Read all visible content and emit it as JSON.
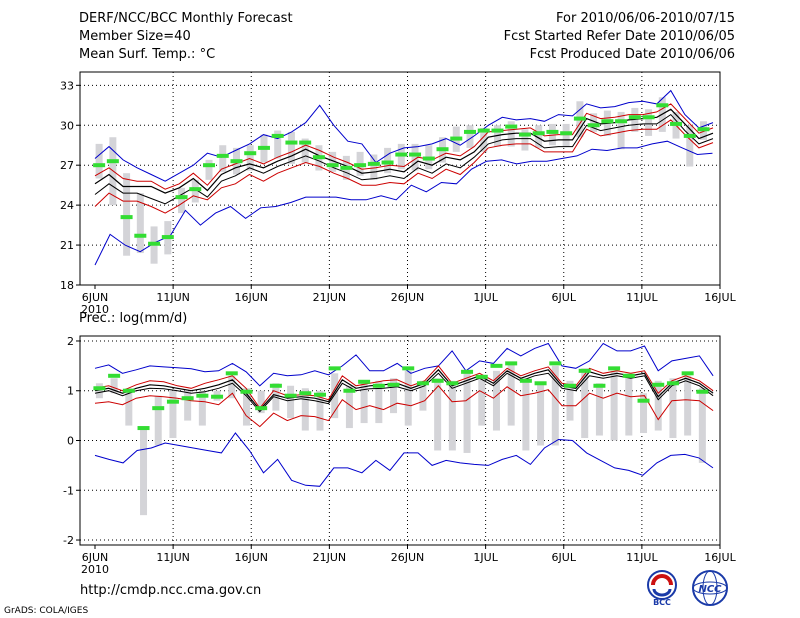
{
  "header": {
    "title": "DERF/NCC/BCC Monthly Forecast",
    "member_size": "Member Size=40",
    "variable": "Mean Surf. Temp.: °C",
    "forecast_period": "For 2010/06/06-2010/07/15",
    "started_refer": "Fcst Started Refer Date 2010/06/05",
    "produced": "Fcst Produced Date 2010/06/06"
  },
  "colors": {
    "envelope": "#0000cc",
    "percentile": "#cc0000",
    "mean": "#000000",
    "observed_bar": "#33dd33",
    "spread_box": "#d4d4d8"
  },
  "x_axis": {
    "days": 40,
    "tick_labels": [
      "6JUN",
      "11JUN",
      "16JUN",
      "21JUN",
      "26JUN",
      "1JUL",
      "6JUL",
      "11JUL",
      "16JUL"
    ],
    "year_label": "2010"
  },
  "chart_data": [
    {
      "type": "line",
      "title": "Mean Surf. Temp.: °C",
      "ylim": [
        18,
        34
      ],
      "yticks": [
        18,
        21,
        24,
        27,
        30,
        33
      ],
      "series": [
        {
          "name": "max",
          "values": [
            27.5,
            28.4,
            27.4,
            26.8,
            26.3,
            25.8,
            26.4,
            27.0,
            27.9,
            27.6,
            28.1,
            28.6,
            29.3,
            29.0,
            29.5,
            30.2,
            31.5,
            30.0,
            28.8,
            28.6,
            27.2,
            27.9,
            28.3,
            28.4,
            28.6,
            29.0,
            28.5,
            29.2,
            30.0,
            30.6,
            30.4,
            30.5,
            30.3,
            30.8,
            30.7,
            31.6,
            31.3,
            31.4,
            31.7,
            31.8,
            31.6,
            32.6,
            30.8,
            29.8,
            30.2
          ]
        },
        {
          "name": "p75",
          "values": [
            26.2,
            26.8,
            26.0,
            25.8,
            25.8,
            25.2,
            25.6,
            26.4,
            25.5,
            26.7,
            27.1,
            27.5,
            27.1,
            27.6,
            28.0,
            28.5,
            28.1,
            27.6,
            27.2,
            26.7,
            26.8,
            27.0,
            26.9,
            27.6,
            27.4,
            27.9,
            27.7,
            28.4,
            29.5,
            29.6,
            29.7,
            29.8,
            29.2,
            29.3,
            29.3,
            30.9,
            30.5,
            30.6,
            30.8,
            30.8,
            31.0,
            31.6,
            30.5,
            29.4,
            29.8
          ]
        },
        {
          "name": "mean",
          "values": [
            25.6,
            26.3,
            25.4,
            25.4,
            25.4,
            24.9,
            25.3,
            26.0,
            25.1,
            26.3,
            26.8,
            27.1,
            26.8,
            27.3,
            27.7,
            28.2,
            27.7,
            27.3,
            26.9,
            26.4,
            26.5,
            26.7,
            26.5,
            27.3,
            27.0,
            27.6,
            27.4,
            28.0,
            29.1,
            29.3,
            29.4,
            29.4,
            28.8,
            28.9,
            28.9,
            30.5,
            30.1,
            30.2,
            30.4,
            30.5,
            30.6,
            31.2,
            30.1,
            29.0,
            29.4
          ]
        },
        {
          "name": "p25",
          "values": [
            24.8,
            25.6,
            24.9,
            24.9,
            24.5,
            24.1,
            24.7,
            25.3,
            24.6,
            25.8,
            26.2,
            26.8,
            26.4,
            26.9,
            27.3,
            27.7,
            27.3,
            26.8,
            26.4,
            25.9,
            26.0,
            26.2,
            26.0,
            26.8,
            26.4,
            27.1,
            26.8,
            27.6,
            28.6,
            28.9,
            29.0,
            29.0,
            28.3,
            28.4,
            28.4,
            30.0,
            29.6,
            29.8,
            30.0,
            30.1,
            30.1,
            30.8,
            29.6,
            28.6,
            29.0
          ]
        },
        {
          "name": "p10",
          "values": [
            23.9,
            24.9,
            24.3,
            24.3,
            23.9,
            23.4,
            24.0,
            24.7,
            24.4,
            25.3,
            25.6,
            26.3,
            25.8,
            26.4,
            26.8,
            27.2,
            26.9,
            26.4,
            26.0,
            25.5,
            25.5,
            25.7,
            25.6,
            26.4,
            26.0,
            26.7,
            26.3,
            27.2,
            28.3,
            28.5,
            28.6,
            28.6,
            28.0,
            28.0,
            28.0,
            29.7,
            29.2,
            29.4,
            29.6,
            29.7,
            29.7,
            30.4,
            29.3,
            28.3,
            28.7
          ]
        },
        {
          "name": "min",
          "values": [
            19.5,
            21.8,
            21.0,
            20.5,
            21.2,
            21.7,
            23.6,
            22.5,
            23.4,
            23.9,
            23.0,
            23.8,
            23.9,
            24.2,
            24.6,
            24.6,
            24.6,
            24.4,
            24.4,
            24.7,
            24.4,
            25.5,
            25.0,
            25.7,
            25.6,
            26.7,
            27.3,
            27.4,
            27.1,
            27.3,
            27.3,
            27.5,
            27.7,
            28.2,
            28.1,
            28.3,
            28.3,
            28.6,
            28.8,
            28.3,
            27.8,
            27.9
          ]
        },
        {
          "name": "observed_marks",
          "values": [
            27.0,
            27.3,
            23.1,
            21.7,
            21.1,
            21.6,
            24.6,
            25.2,
            27.0,
            27.7,
            27.3,
            27.9,
            28.3,
            29.2,
            28.7,
            28.7,
            27.6,
            27.0,
            26.8,
            27.0,
            27.1,
            27.2,
            27.8,
            27.8,
            27.5,
            28.2,
            29.0,
            29.5,
            29.6,
            29.6,
            29.9,
            29.3,
            29.4,
            29.5,
            29.4,
            30.5,
            30.0,
            30.3,
            30.3,
            30.6,
            30.6,
            31.5,
            30.1,
            29.2,
            29.7
          ]
        },
        {
          "name": "box_low",
          "values": [
            26.0,
            24.0,
            20.2,
            20.4,
            19.6,
            20.3,
            23.4,
            24.2,
            25.9,
            26.5,
            26.3,
            26.6,
            27.2,
            27.5,
            27.1,
            27.2,
            26.6,
            26.5,
            25.9,
            26.2,
            25.9,
            26.4,
            26.7,
            26.6,
            26.7,
            27.2,
            28.0,
            28.3,
            28.0,
            28.4,
            28.4,
            28.1,
            28.3,
            28.5,
            28.4,
            29.1,
            29.5,
            29.2,
            28.2,
            29.5,
            29.2,
            29.5,
            29.0,
            26.9,
            28.9
          ]
        },
        {
          "name": "box_high",
          "values": [
            28.6,
            29.1,
            26.4,
            24.9,
            22.4,
            22.8,
            25.3,
            25.9,
            27.4,
            28.5,
            28.3,
            28.5,
            29.3,
            29.6,
            29.5,
            29.0,
            28.5,
            28.0,
            27.7,
            28.0,
            27.8,
            28.3,
            28.6,
            28.6,
            28.5,
            29.1,
            29.9,
            30.0,
            29.8,
            30.0,
            30.3,
            29.7,
            30.0,
            30.1,
            30.1,
            31.8,
            30.9,
            31.1,
            31.0,
            31.3,
            31.2,
            32.1,
            31.0,
            30.0,
            30.3
          ]
        }
      ]
    },
    {
      "type": "line",
      "title": "Prec.: log(mm/d)",
      "ylim": [
        -2.1,
        2.1
      ],
      "yticks": [
        -2,
        -1,
        0,
        1,
        2
      ],
      "series": [
        {
          "name": "max",
          "values": [
            1.45,
            1.52,
            1.35,
            1.42,
            1.5,
            1.48,
            1.46,
            1.44,
            1.38,
            1.4,
            1.55,
            1.38,
            1.1,
            1.35,
            1.3,
            1.32,
            1.4,
            1.32,
            1.5,
            1.72,
            1.4,
            1.4,
            1.55,
            1.35,
            1.45,
            1.5,
            1.8,
            1.4,
            1.6,
            1.55,
            1.85,
            1.7,
            1.85,
            1.95,
            1.5,
            1.45,
            1.6,
            1.95,
            1.8,
            1.8,
            1.9,
            1.4,
            1.6,
            1.65,
            1.7,
            1.3
          ]
        },
        {
          "name": "p75",
          "values": [
            1.05,
            1.1,
            1.0,
            1.12,
            1.2,
            1.18,
            1.1,
            1.05,
            1.15,
            1.22,
            1.3,
            1.05,
            0.65,
            1.0,
            0.9,
            0.92,
            0.9,
            0.82,
            1.3,
            1.1,
            1.15,
            1.2,
            1.22,
            1.1,
            1.2,
            1.5,
            1.15,
            1.25,
            1.35,
            1.2,
            1.45,
            1.3,
            1.4,
            1.48,
            1.15,
            1.1,
            1.45,
            1.35,
            1.4,
            1.35,
            1.4,
            0.95,
            1.2,
            1.3,
            1.2,
            1.0
          ]
        },
        {
          "name": "mean",
          "values": [
            1.0,
            1.05,
            0.95,
            1.05,
            1.12,
            1.1,
            1.05,
            1.0,
            1.05,
            1.12,
            1.22,
            0.95,
            0.62,
            0.92,
            0.85,
            0.88,
            0.85,
            0.78,
            1.22,
            1.05,
            1.1,
            1.12,
            1.15,
            1.05,
            1.15,
            1.42,
            1.1,
            1.2,
            1.3,
            1.15,
            1.4,
            1.25,
            1.35,
            1.42,
            1.1,
            1.05,
            1.38,
            1.3,
            1.35,
            1.3,
            1.35,
            0.88,
            1.15,
            1.25,
            1.15,
            0.95
          ]
        },
        {
          "name": "p25",
          "values": [
            0.95,
            1.0,
            0.9,
            1.0,
            1.05,
            1.04,
            1.0,
            0.95,
            0.98,
            1.05,
            1.15,
            0.9,
            0.58,
            0.88,
            0.8,
            0.84,
            0.8,
            0.74,
            1.15,
            1.0,
            1.04,
            1.05,
            1.08,
            1.0,
            1.1,
            1.35,
            1.05,
            1.15,
            1.25,
            1.1,
            1.35,
            1.2,
            1.3,
            1.35,
            1.05,
            1.0,
            1.3,
            1.25,
            1.3,
            1.25,
            1.3,
            0.82,
            1.1,
            1.2,
            1.1,
            0.9
          ]
        },
        {
          "name": "p10",
          "values": [
            0.75,
            0.78,
            0.72,
            0.85,
            0.9,
            0.88,
            0.85,
            0.8,
            0.78,
            0.72,
            0.95,
            0.5,
            0.28,
            0.55,
            0.4,
            0.5,
            0.48,
            0.4,
            0.82,
            0.62,
            0.7,
            0.62,
            0.75,
            0.7,
            0.8,
            1.1,
            0.78,
            0.8,
            1.0,
            0.85,
            1.08,
            0.9,
            0.95,
            1.02,
            0.7,
            0.7,
            0.95,
            0.85,
            0.95,
            0.88,
            0.9,
            0.42,
            0.8,
            0.82,
            0.8,
            0.6
          ]
        },
        {
          "name": "min",
          "values": [
            -0.3,
            -0.38,
            -0.45,
            -0.2,
            -0.15,
            -0.05,
            -0.1,
            -0.15,
            -0.2,
            -0.25,
            0.15,
            -0.2,
            -0.65,
            -0.38,
            -0.8,
            -0.9,
            -0.92,
            -0.55,
            -0.55,
            -0.65,
            -0.4,
            -0.6,
            -0.25,
            -0.25,
            -0.5,
            -0.4,
            -0.45,
            -0.48,
            -0.5,
            -0.38,
            -0.3,
            -0.48,
            -0.15,
            0.02,
            0.0,
            -0.25,
            -0.4,
            -0.55,
            -0.6,
            -0.7,
            -0.45,
            -0.3,
            -0.28,
            -0.35,
            -0.55
          ]
        },
        {
          "name": "observed_marks",
          "values": [
            1.05,
            1.3,
            1.0,
            0.25,
            0.65,
            0.78,
            0.85,
            0.9,
            0.88,
            1.35,
            0.98,
            0.65,
            1.1,
            0.9,
            0.95,
            0.92,
            1.45,
            1.0,
            1.18,
            1.1,
            1.12,
            1.45,
            1.15,
            1.2,
            1.15,
            1.38,
            1.28,
            1.5,
            1.55,
            1.2,
            1.15,
            1.55,
            1.1,
            1.4,
            1.1,
            1.45,
            1.3,
            0.8,
            1.12,
            1.15,
            1.35,
            0.98
          ]
        },
        {
          "name": "box_low",
          "values": [
            0.85,
            0.95,
            0.3,
            -1.5,
            -0.1,
            0.05,
            0.4,
            0.3,
            0.8,
            0.85,
            0.3,
            0.55,
            0.6,
            0.45,
            0.2,
            0.2,
            0.45,
            0.25,
            0.35,
            0.35,
            0.55,
            0.3,
            0.6,
            -0.2,
            -0.2,
            -0.25,
            0.3,
            0.2,
            0.3,
            -0.2,
            -0.1,
            -0.1,
            0.4,
            0.05,
            0.1,
            0.0,
            0.1,
            0.15,
            0.2,
            0.05,
            0.1,
            -0.45
          ]
        },
        {
          "name": "box_high",
          "values": [
            1.15,
            1.25,
            1.05,
            0.25,
            0.9,
            1.0,
            1.0,
            1.0,
            1.0,
            1.3,
            1.05,
            1.0,
            1.15,
            1.1,
            1.05,
            1.0,
            1.35,
            1.1,
            1.2,
            1.2,
            1.25,
            1.4,
            1.2,
            1.25,
            1.2,
            1.4,
            1.3,
            1.4,
            1.55,
            1.25,
            1.15,
            1.5,
            1.2,
            1.45,
            1.15,
            1.4,
            1.35,
            0.95,
            1.2,
            1.25,
            1.3,
            1.05
          ]
        }
      ]
    }
  ],
  "footer": {
    "url": "http://cmdp.ncc.cma.gov.cn",
    "credit": "GrADS: COLA/IGES"
  },
  "logos": {
    "bcc_text": "BCC",
    "ncc_text": "NCC"
  }
}
